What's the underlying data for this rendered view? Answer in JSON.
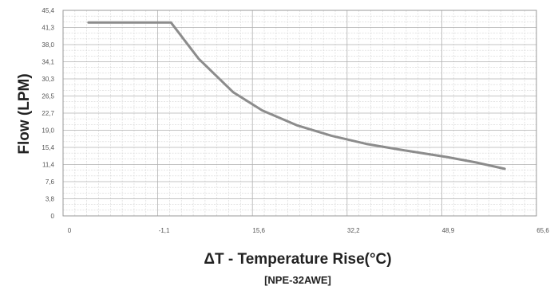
{
  "chart_data": {
    "type": "line",
    "xlabel": "ΔT - Temperature Rise(°C)",
    "ylabel": "Flow (LPM)",
    "caption": "[NPE-32AWE]",
    "xlim": [
      0,
      65.6
    ],
    "ylim": [
      0,
      45.4
    ],
    "x_ticks": [
      {
        "value": 0,
        "label": "0"
      },
      {
        "value": 16.4,
        "label": "-1,1"
      },
      {
        "value": 32.8,
        "label": "15,6"
      },
      {
        "value": 49.2,
        "label": "32,2"
      },
      {
        "value": 65.6,
        "label": "48,9"
      },
      {
        "value": 82.0,
        "label": "65,6"
      }
    ],
    "y_ticks": [
      "0",
      "3,8",
      "7,6",
      "11,4",
      "15,4",
      "19,0",
      "22,7",
      "26,5",
      "30,3",
      "34,1",
      "38,0",
      "41,3",
      "45,4"
    ],
    "grid": true,
    "line_color": "#8c8c8c",
    "series": [
      {
        "x": [
          4.4,
          18.7,
          23.5,
          29.5,
          34.5,
          40.5,
          46.5,
          52.5,
          58.5,
          66.5,
          71.5,
          76.5
        ],
        "y": [
          42.7,
          42.7,
          34.7,
          27.3,
          23.3,
          20.0,
          17.7,
          15.9,
          14.6,
          13.0,
          11.8,
          10.4
        ]
      }
    ]
  }
}
